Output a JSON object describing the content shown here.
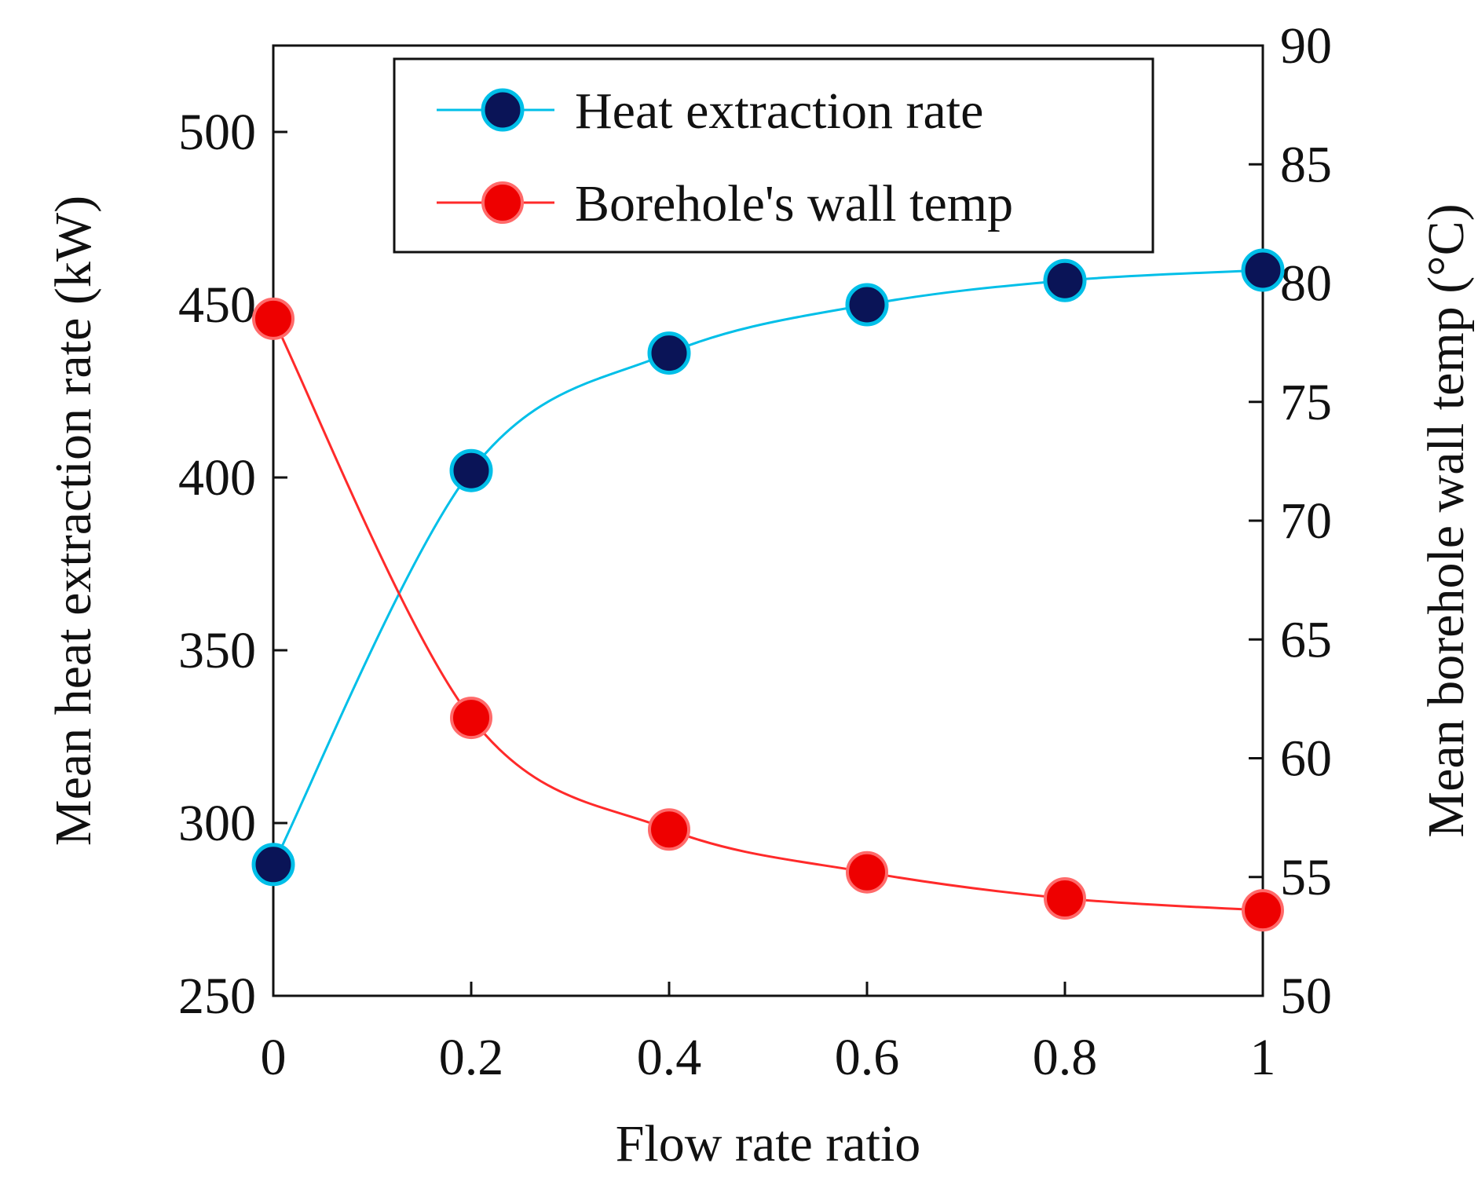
{
  "chart_data": {
    "type": "line",
    "title": "",
    "xlabel": "Flow rate ratio",
    "ylabel_left": "Mean heat extraction rate (kW)",
    "ylabel_right": "Mean borehole wall temp (°C)",
    "x": [
      0,
      0.2,
      0.4,
      0.6,
      0.8,
      1
    ],
    "x_tick_labels": [
      "0",
      "0.2",
      "0.4",
      "0.6",
      "0.8",
      "1"
    ],
    "xlim": [
      0,
      1
    ],
    "ylim_left": [
      250,
      525
    ],
    "y_left_ticks": [
      250,
      300,
      350,
      400,
      450,
      500
    ],
    "ylim_right": [
      50,
      90
    ],
    "y_right_ticks": [
      50,
      55,
      60,
      65,
      70,
      75,
      80,
      85,
      90
    ],
    "grid": false,
    "legend_position": "top-right",
    "series": [
      {
        "name": "Heat extraction rate",
        "axis": "left",
        "line_color": "#00bfe8",
        "marker_color": "#0a1457",
        "values": [
          288,
          402,
          436,
          450,
          457,
          460
        ]
      },
      {
        "name": "Borehole's wall temp",
        "axis": "right",
        "line_color": "#ff2a2a",
        "marker_color": "#ee0000",
        "values": [
          78.5,
          61.7,
          57.0,
          55.2,
          54.1,
          53.6
        ]
      }
    ]
  }
}
